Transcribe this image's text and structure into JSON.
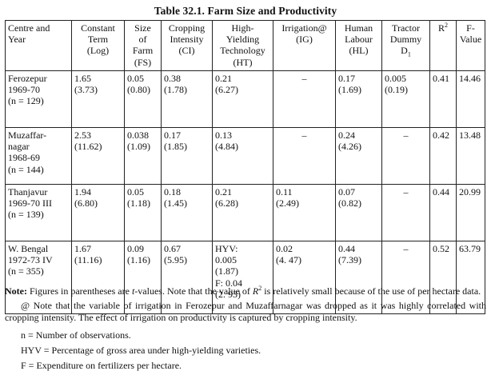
{
  "top_fragment": "",
  "title": "Table 32.1. Farm Size and Productivity",
  "headers": [
    {
      "lines": [
        "Centre and",
        "Year"
      ]
    },
    {
      "lines": [
        "Constant",
        "Term",
        "(Log)"
      ]
    },
    {
      "lines": [
        "Size",
        "of",
        "Farm",
        "(FS)"
      ]
    },
    {
      "lines": [
        "Cropping",
        "Intensity",
        "(CI)"
      ]
    },
    {
      "lines": [
        "High-",
        "Yielding",
        "Technology",
        "(HT)"
      ]
    },
    {
      "lines": [
        "Irrigation@",
        "(IG)"
      ]
    },
    {
      "lines": [
        "Human",
        "Labour",
        "(HL)"
      ]
    },
    {
      "lines": [
        "Tractor",
        "Dummy",
        "D"
      ],
      "subscript": "1"
    },
    {
      "lines": [
        "R"
      ],
      "superscript": "2"
    },
    {
      "lines": [
        "F-",
        "Value"
      ]
    }
  ],
  "rows": [
    {
      "centre": [
        "Ferozepur",
        "1969-70",
        "(n = 129)"
      ],
      "constant": [
        "1.65",
        "(3.73)"
      ],
      "fs": [
        "0.05",
        "(0.80)"
      ],
      "ci": [
        "0.38",
        "(1.78)"
      ],
      "ht": [
        "0.21",
        "(6.27)"
      ],
      "ig": [
        "–"
      ],
      "hl": [
        "0.17",
        "(1.69)"
      ],
      "tractor": [
        "0.005",
        "(0.19)"
      ],
      "r2": "0.41",
      "f": "14.46"
    },
    {
      "centre": [
        "Muzaffar-",
        "nagar",
        "1968-69",
        "(n = 144)"
      ],
      "constant": [
        "2.53",
        "(11.62)"
      ],
      "fs": [
        "0.038",
        "(1.09)"
      ],
      "ci": [
        "0.17",
        "(1.85)"
      ],
      "ht": [
        "0.13",
        "(4.84)"
      ],
      "ig": [
        "–"
      ],
      "hl": [
        "0.24",
        "(4.26)"
      ],
      "tractor": [
        "–"
      ],
      "r2": "0.42",
      "f": "13.48"
    },
    {
      "centre": [
        "Thanjavur",
        "1969-70 III",
        "(n = 139)"
      ],
      "constant": [
        "1.94",
        "(6.80)"
      ],
      "fs": [
        "0.05",
        "(1.18)"
      ],
      "ci": [
        "0.18",
        "(1.45)"
      ],
      "ht": [
        "0.21",
        "(6.28)"
      ],
      "ig": [
        "0.11",
        "(2.49)"
      ],
      "hl": [
        "0.07",
        "(0.82)"
      ],
      "tractor": [
        "–"
      ],
      "r2": "0.44",
      "f": "20.99"
    },
    {
      "centre": [
        "W.  Bengal",
        "1972-73 IV",
        "(n = 355)"
      ],
      "constant": [
        "1.67",
        "(11.16)"
      ],
      "fs": [
        "0.09",
        "(1.16)"
      ],
      "ci": [
        "0.67",
        "(5.95)"
      ],
      "ht": [
        "HYV:",
        "0.005",
        "(1.87)",
        "F: 0.04",
        "(2. 93)"
      ],
      "ig": [
        "0.02",
        "(4. 47)"
      ],
      "hl": [
        "0.44",
        "(7.39)"
      ],
      "tractor": [
        "–"
      ],
      "r2": "0.52",
      "f": "63.79"
    }
  ],
  "notes": {
    "note_label": "Note:",
    "note_text_1": " Figures in parentheses are ",
    "note_t": "t",
    "note_text_2": "-values. Note that the value of ",
    "note_r": "R",
    "note_r_sup": "2",
    "note_text_3": " is relatively small because of the use of per hectare data.",
    "at_note": "@ Note that the variable of irrigation in Ferozepur and Muzaffarnagar was dropped as it was highly correlated with cropping intensity. The effect of irrigation on productivity is captured by cropping intensity.",
    "definitions": [
      "n = Number of observations.",
      "HYV = Percentage of gross area under high-yielding varieties.",
      "F = Expenditure on fertilizers per hectare."
    ]
  }
}
